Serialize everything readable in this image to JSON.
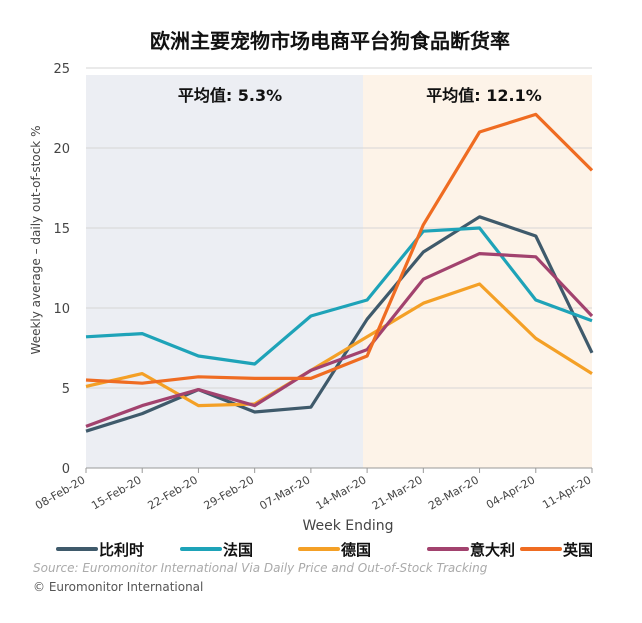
{
  "chart_data": {
    "type": "line",
    "title": "欧洲主要宠物市场电商平台狗食品断货率",
    "xlabel": "Week Ending",
    "ylabel": "Weekly average – daily out-of-stock %",
    "ylim": [
      0,
      25
    ],
    "yticks": [
      "0",
      "5",
      "10",
      "15",
      "20",
      "25"
    ],
    "grid": true,
    "legend_position": "bottom",
    "categories": [
      "08-Feb-20",
      "15-Feb-20",
      "22-Feb-20",
      "29-Feb-20",
      "07-Mar-20",
      "14-Mar-20",
      "21-Mar-20",
      "28-Mar-20",
      "04-Apr-20",
      "11-Apr-20"
    ],
    "annotations": [
      {
        "text": "平均值: 5.3%",
        "region": "08-Feb-20 to 14-Mar-20",
        "color": "#eceef3"
      },
      {
        "text": "平均值: 12.1%",
        "region": "14-Mar-20 to 11-Apr-20",
        "color": "#fdf3e8"
      }
    ],
    "series": [
      {
        "name": "比利时",
        "color": "#3f5a6b",
        "values": [
          2.3,
          3.4,
          4.9,
          3.5,
          3.8,
          9.3,
          13.5,
          15.7,
          14.5,
          7.2
        ]
      },
      {
        "name": "法国",
        "color": "#1ea3b8",
        "values": [
          8.2,
          8.4,
          7.0,
          6.5,
          9.5,
          10.5,
          14.8,
          15.0,
          10.5,
          9.2
        ]
      },
      {
        "name": "德国",
        "color": "#f4a026",
        "values": [
          5.1,
          5.9,
          3.9,
          4.0,
          6.1,
          8.2,
          10.3,
          11.5,
          8.1,
          5.9
        ]
      },
      {
        "name": "意大利",
        "color": "#a2426e",
        "values": [
          2.6,
          3.9,
          4.9,
          3.9,
          6.1,
          7.4,
          11.8,
          13.4,
          13.2,
          9.5
        ]
      },
      {
        "name": "英国",
        "color": "#ef6c22",
        "values": [
          5.5,
          5.3,
          5.7,
          5.6,
          5.6,
          7.0,
          15.2,
          21.0,
          22.1,
          18.6
        ]
      }
    ]
  },
  "source": "Source: Euromonitor International Via Daily Price and Out-of-Stock Tracking",
  "copyright": "© Euromonitor International"
}
